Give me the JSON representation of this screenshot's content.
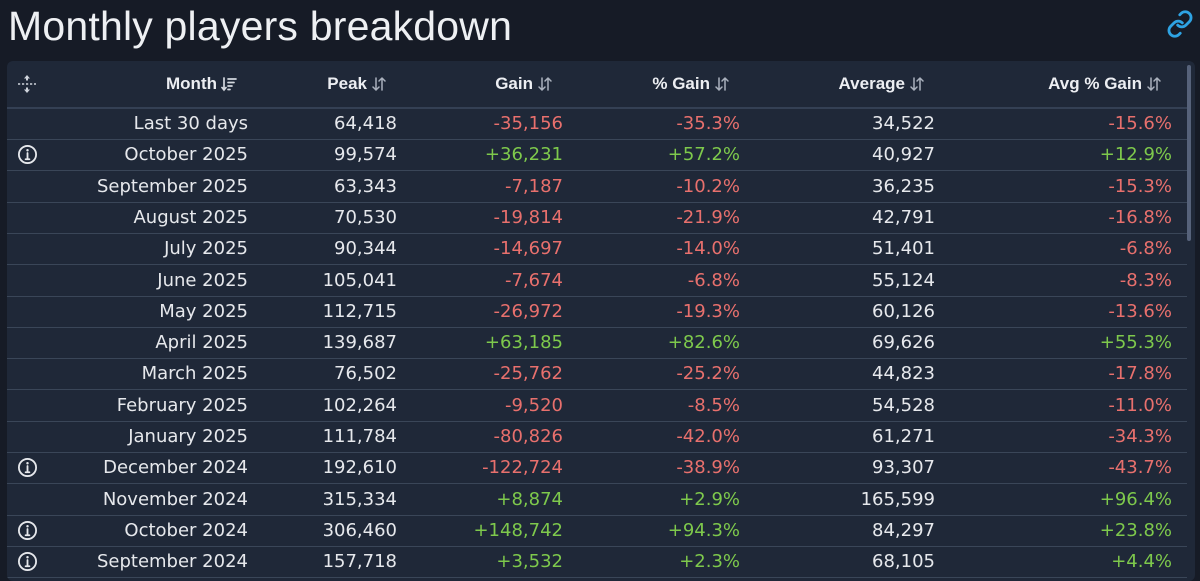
{
  "page": {
    "title": "Monthly players breakdown"
  },
  "colors": {
    "positive": "#7ec94c",
    "negative": "#e8706d",
    "link": "#2ea3e3"
  },
  "icons": {
    "link": "link-icon",
    "move": "move-icon",
    "info": "info-icon",
    "sort_desc": "sort-desc-icon",
    "sort": "sort-arrows-icon"
  },
  "table": {
    "columns": {
      "month": "Month",
      "peak": "Peak",
      "gain": "Gain",
      "pct_gain": "% Gain",
      "average": "Average",
      "avg_pct_gain": "Avg % Gain"
    },
    "rows": [
      {
        "month": "Last 30 days",
        "peak": "64,418",
        "gain": "-35,156",
        "pct_gain": "-35.3%",
        "average": "34,522",
        "avg_pct_gain": "-15.6%",
        "info": false
      },
      {
        "month": "October 2025",
        "peak": "99,574",
        "gain": "+36,231",
        "pct_gain": "+57.2%",
        "average": "40,927",
        "avg_pct_gain": "+12.9%",
        "info": true
      },
      {
        "month": "September 2025",
        "peak": "63,343",
        "gain": "-7,187",
        "pct_gain": "-10.2%",
        "average": "36,235",
        "avg_pct_gain": "-15.3%",
        "info": false
      },
      {
        "month": "August 2025",
        "peak": "70,530",
        "gain": "-19,814",
        "pct_gain": "-21.9%",
        "average": "42,791",
        "avg_pct_gain": "-16.8%",
        "info": false
      },
      {
        "month": "July 2025",
        "peak": "90,344",
        "gain": "-14,697",
        "pct_gain": "-14.0%",
        "average": "51,401",
        "avg_pct_gain": "-6.8%",
        "info": false
      },
      {
        "month": "June 2025",
        "peak": "105,041",
        "gain": "-7,674",
        "pct_gain": "-6.8%",
        "average": "55,124",
        "avg_pct_gain": "-8.3%",
        "info": false
      },
      {
        "month": "May 2025",
        "peak": "112,715",
        "gain": "-26,972",
        "pct_gain": "-19.3%",
        "average": "60,126",
        "avg_pct_gain": "-13.6%",
        "info": false
      },
      {
        "month": "April 2025",
        "peak": "139,687",
        "gain": "+63,185",
        "pct_gain": "+82.6%",
        "average": "69,626",
        "avg_pct_gain": "+55.3%",
        "info": false
      },
      {
        "month": "March 2025",
        "peak": "76,502",
        "gain": "-25,762",
        "pct_gain": "-25.2%",
        "average": "44,823",
        "avg_pct_gain": "-17.8%",
        "info": false
      },
      {
        "month": "February 2025",
        "peak": "102,264",
        "gain": "-9,520",
        "pct_gain": "-8.5%",
        "average": "54,528",
        "avg_pct_gain": "-11.0%",
        "info": false
      },
      {
        "month": "January 2025",
        "peak": "111,784",
        "gain": "-80,826",
        "pct_gain": "-42.0%",
        "average": "61,271",
        "avg_pct_gain": "-34.3%",
        "info": false
      },
      {
        "month": "December 2024",
        "peak": "192,610",
        "gain": "-122,724",
        "pct_gain": "-38.9%",
        "average": "93,307",
        "avg_pct_gain": "-43.7%",
        "info": true
      },
      {
        "month": "November 2024",
        "peak": "315,334",
        "gain": "+8,874",
        "pct_gain": "+2.9%",
        "average": "165,599",
        "avg_pct_gain": "+96.4%",
        "info": false
      },
      {
        "month": "October 2024",
        "peak": "306,460",
        "gain": "+148,742",
        "pct_gain": "+94.3%",
        "average": "84,297",
        "avg_pct_gain": "+23.8%",
        "info": true
      },
      {
        "month": "September 2024",
        "peak": "157,718",
        "gain": "+3,532",
        "pct_gain": "+2.3%",
        "average": "68,105",
        "avg_pct_gain": "+4.4%",
        "info": true
      }
    ]
  }
}
